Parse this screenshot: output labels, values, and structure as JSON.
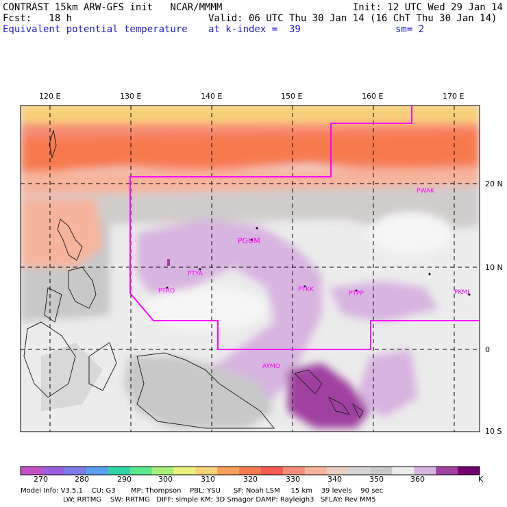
{
  "header": {
    "line1_left": "CONTRAST 15km ARW-GFS init   NCAR/MMMM",
    "line1_right": "Init: 12 UTC Wed 29 Jan 14",
    "line2_left": "Fcst:   18 h",
    "line2_right": "Valid: 06 UTC Thu 30 Jan 14 (16 ChT Thu 30 Jan 14)",
    "line3_left": "Equivalent potential temperature",
    "line3_mid": "at k-index =  39",
    "line3_right": "sm= 2"
  },
  "map": {
    "lon_labels": [
      "120 E",
      "130 E",
      "140 E",
      "150 E",
      "160 E",
      "170 E"
    ],
    "lat_labels": [
      "20 N",
      "10 N",
      "0",
      "10 S"
    ],
    "stations": [
      "PWAK",
      "PGUM",
      "PTYA",
      "PTRO",
      "PTKK",
      "PTPP",
      "PKMJ",
      "AYMO"
    ],
    "domain_color": "#ff00ff"
  },
  "colorbar": {
    "labels": [
      "270",
      "280",
      "290",
      "300",
      "310",
      "320",
      "330",
      "340",
      "350",
      "360"
    ],
    "unit": "K",
    "colors": [
      "#c34fc3",
      "#9b5de0",
      "#7a7ae8",
      "#5a9ef0",
      "#2fd3a8",
      "#5ae88c",
      "#a6f07a",
      "#eaf07a",
      "#f7d07a",
      "#f7a05a",
      "#f77a50",
      "#f75a50",
      "#f78c78",
      "#f7b49c",
      "#e8cfc0",
      "#d8d4d4",
      "#c8c8c8",
      "#ececec",
      "#d8b4e0",
      "#a040a0",
      "#700070"
    ]
  },
  "footer": {
    "line1": "Model Info: V3.5.1    CU: G3       MP: Thompson    PBL: YSU      SF: Noah LSM     15 km    39 levels    90 sec",
    "line2": "LW: RRTMG    SW: RRTMG   DIFF: simple KM: 3D Smagor DAMP: Rayleigh3   SFLAY: Rev MM5"
  }
}
